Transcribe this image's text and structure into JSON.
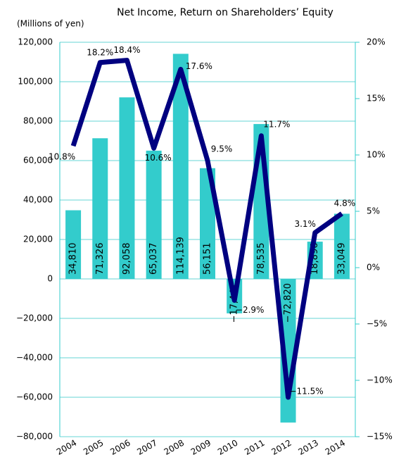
{
  "chart_data": {
    "type": "bar_line",
    "title": "Net Income, Return on Shareholders’ Equity",
    "y_label": "(Millions of yen)",
    "categories": [
      "2004",
      "2005",
      "2006",
      "2007",
      "2008",
      "2009",
      "2010",
      "2011",
      "2012",
      "2013",
      "2014"
    ],
    "series": [
      {
        "type": "bar",
        "color": "#33cccc",
        "values": [
          34810,
          71326,
          92058,
          65037,
          114139,
          56151,
          -17447,
          78535,
          -72820,
          18896,
          33049
        ],
        "value_labels": [
          "34,810",
          "71,326",
          "92,058",
          "65,037",
          "114,139",
          "56,151",
          "−17,447",
          "78,535",
          "−72,820",
          "18,896",
          "33,049"
        ]
      },
      {
        "type": "line",
        "axis": "y2",
        "color": "#000080",
        "values": [
          10.8,
          18.2,
          18.4,
          10.6,
          17.6,
          9.5,
          -2.9,
          11.7,
          -11.5,
          3.1,
          4.8
        ],
        "value_labels": [
          "10.8%",
          "18.2%",
          "18.4%",
          "10.6%",
          "17.6%",
          "9.5%",
          "−2.9%",
          "11.7%",
          "−11.5%",
          "3.1%",
          "4.8%"
        ]
      }
    ],
    "ylim": [
      -80000,
      120000
    ],
    "yticks": [
      {
        "value": -80000,
        "label": "−80,000"
      },
      {
        "value": -60000,
        "label": "−60,000"
      },
      {
        "value": -40000,
        "label": "−40,000"
      },
      {
        "value": -20000,
        "label": "−20,000"
      },
      0,
      {
        "value": 20000,
        "label": "20,000"
      },
      {
        "value": 40000,
        "label": "40,000"
      },
      {
        "value": 60000,
        "label": "60,000"
      },
      {
        "value": 80000,
        "label": "80,000"
      },
      {
        "value": 100000,
        "label": "100,000"
      },
      {
        "value": 120000,
        "label": "120,000"
      }
    ],
    "y2lim": [
      -15,
      20
    ],
    "y2ticks": [
      {
        "value": -15,
        "label": "−15%"
      },
      {
        "value": -10,
        "label": "−10%"
      },
      {
        "value": -5,
        "label": "−5%"
      },
      {
        "value": 0,
        "label": "0%"
      },
      {
        "value": 5,
        "label": "5%"
      },
      {
        "value": 10,
        "label": "10%"
      },
      {
        "value": 15,
        "label": "15%"
      },
      {
        "value": 20,
        "label": "20%"
      }
    ],
    "grid": true
  }
}
